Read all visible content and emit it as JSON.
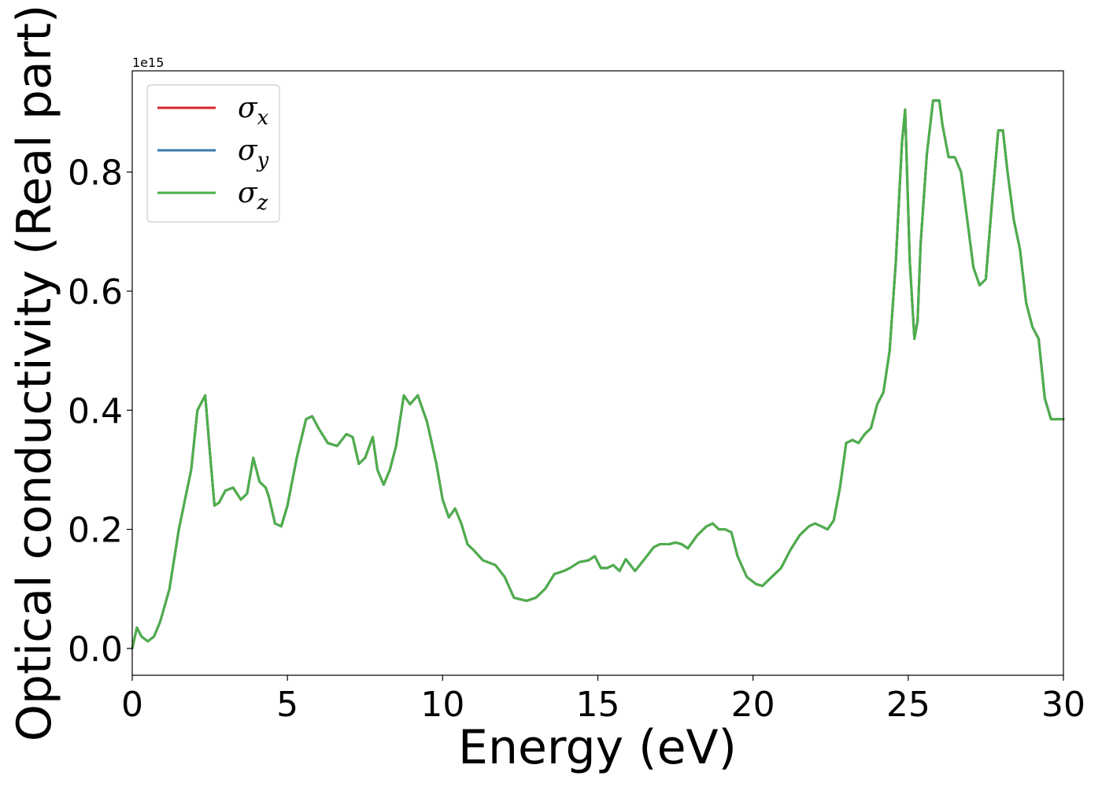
{
  "chart_data": {
    "type": "line",
    "xlabel": "Energy (eV)",
    "ylabel": "Optical conductivity (Real part)",
    "offset_label": "1e15",
    "xlim": [
      0,
      30
    ],
    "ylim": [
      -0.045,
      0.97
    ],
    "x_ticks": [
      0,
      5,
      10,
      15,
      20,
      25,
      30
    ],
    "x_tick_labels": [
      "0",
      "5",
      "10",
      "15",
      "20",
      "25",
      "30"
    ],
    "y_ticks": [
      0.0,
      0.2,
      0.4,
      0.6,
      0.8
    ],
    "y_tick_labels": [
      "0.0",
      "0.2",
      "0.4",
      "0.6",
      "0.8"
    ],
    "grid": false,
    "legend_position": "top-left",
    "colors": {
      "sigma_x": "#d62728",
      "sigma_y": "#3a78b0",
      "sigma_z": "#4daf4a"
    },
    "legend": [
      {
        "symbol": "σ",
        "sub": "x",
        "color": "#d62728"
      },
      {
        "symbol": "σ",
        "sub": "y",
        "color": "#3a78b0"
      },
      {
        "symbol": "σ",
        "sub": "z",
        "color": "#4daf4a"
      }
    ],
    "x": [
      0,
      0.15,
      0.3,
      0.5,
      0.7,
      0.9,
      1.2,
      1.5,
      1.9,
      2.1,
      2.35,
      2.5,
      2.65,
      2.8,
      3.0,
      3.25,
      3.5,
      3.7,
      3.9,
      4.1,
      4.3,
      4.4,
      4.6,
      4.8,
      5.0,
      5.3,
      5.6,
      5.8,
      6.0,
      6.3,
      6.6,
      6.9,
      7.1,
      7.3,
      7.5,
      7.75,
      7.9,
      8.1,
      8.3,
      8.5,
      8.75,
      8.95,
      9.2,
      9.5,
      9.8,
      10.0,
      10.2,
      10.4,
      10.6,
      10.8,
      11.0,
      11.3,
      11.7,
      12.0,
      12.3,
      12.7,
      13.0,
      13.3,
      13.6,
      13.9,
      14.1,
      14.4,
      14.7,
      14.9,
      15.1,
      15.3,
      15.5,
      15.7,
      15.9,
      16.2,
      16.5,
      16.8,
      17.0,
      17.3,
      17.5,
      17.7,
      17.9,
      18.2,
      18.5,
      18.7,
      18.9,
      19.1,
      19.3,
      19.5,
      19.8,
      20.1,
      20.3,
      20.5,
      20.7,
      20.9,
      21.2,
      21.5,
      21.8,
      22.0,
      22.2,
      22.4,
      22.6,
      22.8,
      23.0,
      23.2,
      23.4,
      23.6,
      23.8,
      24.0,
      24.2,
      24.4,
      24.6,
      24.8,
      24.9,
      25.05,
      25.2,
      25.3,
      25.4,
      25.6,
      25.8,
      26.0,
      26.1,
      26.3,
      26.5,
      26.7,
      26.9,
      27.1,
      27.3,
      27.5,
      27.7,
      27.9,
      28.05,
      28.2,
      28.4,
      28.6,
      28.8,
      29.0,
      29.2,
      29.4,
      29.6,
      29.8,
      30.0
    ],
    "series": [
      {
        "name": "σx",
        "values": [
          0.0,
          0.035,
          0.02,
          0.012,
          0.02,
          0.045,
          0.1,
          0.2,
          0.3,
          0.4,
          0.425,
          0.33,
          0.24,
          0.245,
          0.265,
          0.27,
          0.25,
          0.26,
          0.32,
          0.28,
          0.27,
          0.255,
          0.21,
          0.205,
          0.24,
          0.32,
          0.385,
          0.39,
          0.37,
          0.345,
          0.34,
          0.36,
          0.355,
          0.31,
          0.32,
          0.355,
          0.3,
          0.275,
          0.3,
          0.34,
          0.425,
          0.41,
          0.425,
          0.38,
          0.31,
          0.25,
          0.22,
          0.235,
          0.21,
          0.175,
          0.165,
          0.148,
          0.14,
          0.12,
          0.085,
          0.08,
          0.085,
          0.1,
          0.125,
          0.13,
          0.135,
          0.145,
          0.148,
          0.155,
          0.135,
          0.135,
          0.14,
          0.13,
          0.15,
          0.13,
          0.15,
          0.17,
          0.175,
          0.175,
          0.178,
          0.175,
          0.168,
          0.19,
          0.205,
          0.21,
          0.2,
          0.2,
          0.195,
          0.155,
          0.12,
          0.108,
          0.105,
          0.115,
          0.125,
          0.135,
          0.165,
          0.19,
          0.205,
          0.21,
          0.205,
          0.2,
          0.215,
          0.27,
          0.345,
          0.35,
          0.345,
          0.36,
          0.37,
          0.41,
          0.43,
          0.5,
          0.65,
          0.85,
          0.905,
          0.65,
          0.52,
          0.55,
          0.68,
          0.83,
          0.92,
          0.92,
          0.88,
          0.825,
          0.825,
          0.8,
          0.72,
          0.64,
          0.61,
          0.62,
          0.75,
          0.87,
          0.87,
          0.8,
          0.72,
          0.67,
          0.58,
          0.54,
          0.52,
          0.42,
          0.385,
          0.385,
          0.385
        ]
      },
      {
        "name": "σy",
        "values": [
          0.0,
          0.035,
          0.02,
          0.012,
          0.02,
          0.045,
          0.1,
          0.2,
          0.3,
          0.4,
          0.425,
          0.33,
          0.24,
          0.245,
          0.265,
          0.27,
          0.25,
          0.26,
          0.32,
          0.28,
          0.27,
          0.255,
          0.21,
          0.205,
          0.24,
          0.32,
          0.385,
          0.39,
          0.37,
          0.345,
          0.34,
          0.36,
          0.355,
          0.31,
          0.32,
          0.355,
          0.3,
          0.275,
          0.3,
          0.34,
          0.425,
          0.41,
          0.425,
          0.38,
          0.31,
          0.25,
          0.22,
          0.235,
          0.21,
          0.175,
          0.165,
          0.148,
          0.14,
          0.12,
          0.085,
          0.08,
          0.085,
          0.1,
          0.125,
          0.13,
          0.135,
          0.145,
          0.148,
          0.155,
          0.135,
          0.135,
          0.14,
          0.13,
          0.15,
          0.13,
          0.15,
          0.17,
          0.175,
          0.175,
          0.178,
          0.175,
          0.168,
          0.19,
          0.205,
          0.21,
          0.2,
          0.2,
          0.195,
          0.155,
          0.12,
          0.108,
          0.105,
          0.115,
          0.125,
          0.135,
          0.165,
          0.19,
          0.205,
          0.21,
          0.205,
          0.2,
          0.215,
          0.27,
          0.345,
          0.35,
          0.345,
          0.36,
          0.37,
          0.41,
          0.43,
          0.5,
          0.65,
          0.85,
          0.905,
          0.65,
          0.52,
          0.55,
          0.68,
          0.83,
          0.92,
          0.92,
          0.88,
          0.825,
          0.825,
          0.8,
          0.72,
          0.64,
          0.61,
          0.62,
          0.75,
          0.87,
          0.87,
          0.8,
          0.72,
          0.67,
          0.58,
          0.54,
          0.52,
          0.42,
          0.385,
          0.385,
          0.385
        ]
      },
      {
        "name": "σz",
        "values": [
          0.0,
          0.035,
          0.02,
          0.012,
          0.02,
          0.045,
          0.1,
          0.2,
          0.3,
          0.4,
          0.425,
          0.33,
          0.24,
          0.245,
          0.265,
          0.27,
          0.25,
          0.26,
          0.32,
          0.28,
          0.27,
          0.255,
          0.21,
          0.205,
          0.24,
          0.32,
          0.385,
          0.39,
          0.37,
          0.345,
          0.34,
          0.36,
          0.355,
          0.31,
          0.32,
          0.355,
          0.3,
          0.275,
          0.3,
          0.34,
          0.425,
          0.41,
          0.425,
          0.38,
          0.31,
          0.25,
          0.22,
          0.235,
          0.21,
          0.175,
          0.165,
          0.148,
          0.14,
          0.12,
          0.085,
          0.08,
          0.085,
          0.1,
          0.125,
          0.13,
          0.135,
          0.145,
          0.148,
          0.155,
          0.135,
          0.135,
          0.14,
          0.13,
          0.15,
          0.13,
          0.15,
          0.17,
          0.175,
          0.175,
          0.178,
          0.175,
          0.168,
          0.19,
          0.205,
          0.21,
          0.2,
          0.2,
          0.195,
          0.155,
          0.12,
          0.108,
          0.105,
          0.115,
          0.125,
          0.135,
          0.165,
          0.19,
          0.205,
          0.21,
          0.205,
          0.2,
          0.215,
          0.27,
          0.345,
          0.35,
          0.345,
          0.36,
          0.37,
          0.41,
          0.43,
          0.5,
          0.65,
          0.85,
          0.905,
          0.65,
          0.52,
          0.55,
          0.68,
          0.83,
          0.92,
          0.92,
          0.88,
          0.825,
          0.825,
          0.8,
          0.72,
          0.64,
          0.61,
          0.62,
          0.75,
          0.87,
          0.87,
          0.8,
          0.72,
          0.67,
          0.58,
          0.54,
          0.52,
          0.42,
          0.385,
          0.385,
          0.385
        ]
      }
    ]
  }
}
